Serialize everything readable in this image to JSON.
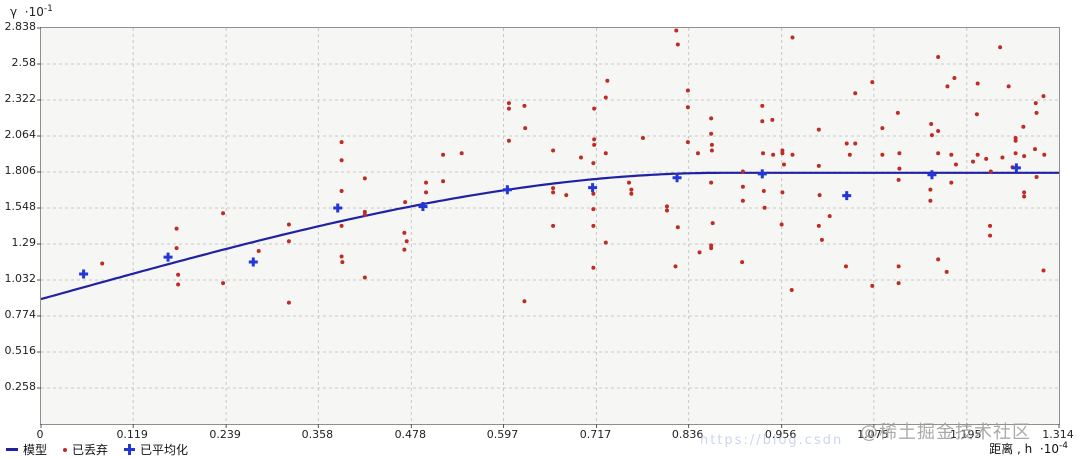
{
  "axes": {
    "y_title": {
      "symbol": "γ",
      "multiplier": "·10",
      "exponent": "-1"
    },
    "x_title": {
      "text": "距离 , h",
      "multiplier": "·10",
      "exponent": "-4"
    },
    "x_ticks": {
      "labels": [
        "0",
        "0.119",
        "0.239",
        "0.358",
        "0.478",
        "0.597",
        "0.717",
        "0.836",
        "0.956",
        "1.075",
        "1.195",
        "1.314"
      ],
      "values": [
        0,
        0.119,
        0.239,
        0.358,
        0.478,
        0.597,
        0.717,
        0.836,
        0.956,
        1.075,
        1.195,
        1.314
      ]
    },
    "y_ticks": {
      "labels": [
        "0.258",
        "0.516",
        "0.774",
        "1.032",
        "1.29",
        "1.548",
        "1.806",
        "2.064",
        "2.322",
        "2.58",
        "2.838"
      ],
      "values": [
        0.258,
        0.516,
        0.774,
        1.032,
        1.29,
        1.548,
        1.806,
        2.064,
        2.322,
        2.58,
        2.838
      ]
    }
  },
  "legend": [
    {
      "label": "模型",
      "marker": "line"
    },
    {
      "label": "已丢弃",
      "marker": "dot"
    },
    {
      "label": "已平均化",
      "marker": "plus"
    }
  ],
  "watermark": {
    "text": "@稀土掘金技术社区",
    "url_text": "https://blog.csdn"
  },
  "colors": {
    "model_line": "#2121a3",
    "averaged_plus": "#2337d4",
    "discarded_dot": "#bf2b25",
    "grid": "#c8c8c8",
    "plot_bg": "#f6f6f4",
    "plot_border": "#8f8f8f"
  },
  "chart_data": {
    "type": "scatter",
    "title": "",
    "xlabel": "距离 , h ·10^-4",
    "ylabel": "γ ·10^-1",
    "xlim": [
      0,
      1.314
    ],
    "ylim": [
      0,
      2.838
    ],
    "grid": true,
    "legend_position": "bottom-left",
    "series": [
      {
        "name": "模型",
        "type": "line",
        "model": "spherical",
        "nugget": 0.895,
        "sill": 1.8,
        "range": 0.88
      },
      {
        "name": "已平均化",
        "type": "scatter",
        "marker": "plus",
        "points": [
          [
            0.055,
            1.075
          ],
          [
            0.164,
            1.196
          ],
          [
            0.274,
            1.161
          ],
          [
            0.383,
            1.548
          ],
          [
            0.493,
            1.559
          ],
          [
            0.602,
            1.679
          ],
          [
            0.712,
            1.694
          ],
          [
            0.821,
            1.765
          ],
          [
            0.931,
            1.793
          ],
          [
            1.04,
            1.637
          ],
          [
            1.15,
            1.786
          ],
          [
            1.259,
            1.836
          ]
        ]
      },
      {
        "name": "已丢弃",
        "type": "scatter",
        "marker": "dot",
        "points": [
          [
            0.079,
            1.15
          ],
          [
            0.175,
            1.4
          ],
          [
            0.175,
            1.26
          ],
          [
            0.177,
            1.07
          ],
          [
            0.177,
            1.0
          ],
          [
            0.235,
            1.51
          ],
          [
            0.235,
            1.01
          ],
          [
            0.281,
            1.24
          ],
          [
            0.32,
            1.43
          ],
          [
            0.32,
            1.31
          ],
          [
            0.32,
            0.87
          ],
          [
            0.388,
            2.02
          ],
          [
            0.388,
            1.89
          ],
          [
            0.388,
            1.67
          ],
          [
            0.388,
            1.42
          ],
          [
            0.388,
            1.2
          ],
          [
            0.389,
            1.16
          ],
          [
            0.418,
            1.76
          ],
          [
            0.418,
            1.52
          ],
          [
            0.418,
            1.5
          ],
          [
            0.418,
            1.05
          ],
          [
            0.47,
            1.59
          ],
          [
            0.469,
            1.37
          ],
          [
            0.472,
            1.31
          ],
          [
            0.469,
            1.25
          ],
          [
            0.497,
            1.73
          ],
          [
            0.497,
            1.66
          ],
          [
            0.519,
            1.93
          ],
          [
            0.543,
            1.94
          ],
          [
            0.519,
            1.74
          ],
          [
            0.604,
            2.3
          ],
          [
            0.604,
            2.26
          ],
          [
            0.624,
            2.28
          ],
          [
            0.625,
            2.12
          ],
          [
            0.604,
            2.03
          ],
          [
            0.624,
            0.88
          ],
          [
            0.661,
            1.96
          ],
          [
            0.661,
            1.69
          ],
          [
            0.661,
            1.66
          ],
          [
            0.661,
            1.42
          ],
          [
            0.678,
            1.64
          ],
          [
            0.697,
            1.91
          ],
          [
            0.713,
            1.87
          ],
          [
            0.729,
            1.94
          ],
          [
            0.731,
            2.46
          ],
          [
            0.729,
            2.34
          ],
          [
            0.714,
            2.26
          ],
          [
            0.714,
            2.04
          ],
          [
            0.714,
            2.0
          ],
          [
            0.713,
            1.65
          ],
          [
            0.713,
            1.54
          ],
          [
            0.713,
            1.42
          ],
          [
            0.729,
            1.3
          ],
          [
            0.713,
            1.12
          ],
          [
            0.759,
            1.73
          ],
          [
            0.762,
            1.68
          ],
          [
            0.762,
            1.65
          ],
          [
            0.777,
            2.05
          ],
          [
            0.82,
            2.82
          ],
          [
            0.822,
            2.72
          ],
          [
            0.835,
            2.39
          ],
          [
            0.835,
            2.27
          ],
          [
            0.835,
            2.02
          ],
          [
            0.848,
            1.94
          ],
          [
            0.808,
            1.56
          ],
          [
            0.808,
            1.53
          ],
          [
            0.822,
            1.41
          ],
          [
            0.85,
            1.23
          ],
          [
            0.819,
            1.13
          ],
          [
            0.865,
            2.19
          ],
          [
            0.865,
            2.08
          ],
          [
            0.866,
            2.0
          ],
          [
            0.866,
            1.96
          ],
          [
            0.865,
            1.73
          ],
          [
            0.867,
            1.44
          ],
          [
            0.865,
            1.28
          ],
          [
            0.865,
            1.26
          ],
          [
            0.906,
            1.81
          ],
          [
            0.906,
            1.7
          ],
          [
            0.906,
            1.6
          ],
          [
            0.905,
            1.16
          ],
          [
            0.931,
            2.28
          ],
          [
            0.931,
            2.17
          ],
          [
            0.944,
            2.18
          ],
          [
            0.932,
            1.94
          ],
          [
            0.945,
            1.93
          ],
          [
            0.957,
            1.96
          ],
          [
            0.957,
            1.94
          ],
          [
            0.97,
            2.77
          ],
          [
            0.97,
            1.93
          ],
          [
            0.959,
            1.86
          ],
          [
            0.933,
            1.67
          ],
          [
            0.957,
            1.66
          ],
          [
            0.956,
            1.43
          ],
          [
            0.934,
            1.55
          ],
          [
            0.969,
            0.96
          ],
          [
            1.004,
            2.11
          ],
          [
            1.04,
            2.01
          ],
          [
            1.051,
            2.01
          ],
          [
            1.051,
            2.37
          ],
          [
            1.004,
            1.85
          ],
          [
            1.005,
            1.64
          ],
          [
            1.018,
            1.49
          ],
          [
            1.004,
            1.42
          ],
          [
            1.008,
            1.32
          ],
          [
            1.039,
            1.13
          ],
          [
            1.044,
            1.93
          ],
          [
            1.073,
            2.45
          ],
          [
            1.086,
            2.12
          ],
          [
            1.086,
            1.93
          ],
          [
            1.073,
            0.99
          ],
          [
            1.106,
            2.23
          ],
          [
            1.108,
            1.94
          ],
          [
            1.108,
            1.83
          ],
          [
            1.107,
            1.75
          ],
          [
            1.107,
            1.13
          ],
          [
            1.107,
            1.01
          ],
          [
            1.149,
            2.15
          ],
          [
            1.158,
            2.63
          ],
          [
            1.158,
            2.1
          ],
          [
            1.15,
            2.07
          ],
          [
            1.158,
            1.94
          ],
          [
            1.148,
            1.68
          ],
          [
            1.148,
            1.6
          ],
          [
            1.158,
            1.18
          ],
          [
            1.169,
            1.09
          ],
          [
            1.179,
            2.48
          ],
          [
            1.17,
            2.42
          ],
          [
            1.175,
            1.93
          ],
          [
            1.175,
            1.73
          ],
          [
            1.181,
            1.86
          ],
          [
            1.209,
            2.44
          ],
          [
            1.208,
            2.22
          ],
          [
            1.209,
            1.93
          ],
          [
            1.203,
            1.88
          ],
          [
            1.22,
            1.9
          ],
          [
            1.226,
            1.81
          ],
          [
            1.225,
            1.42
          ],
          [
            1.225,
            1.35
          ],
          [
            1.238,
            2.7
          ],
          [
            1.249,
            2.42
          ],
          [
            1.241,
            1.91
          ],
          [
            1.254,
            1.84
          ],
          [
            1.258,
            2.05
          ],
          [
            1.258,
            2.03
          ],
          [
            1.258,
            1.94
          ],
          [
            1.268,
            2.13
          ],
          [
            1.269,
            1.92
          ],
          [
            1.269,
            1.66
          ],
          [
            1.269,
            1.63
          ],
          [
            1.284,
            2.3
          ],
          [
            1.285,
            2.23
          ],
          [
            1.283,
            1.97
          ],
          [
            1.285,
            1.77
          ],
          [
            1.294,
            2.35
          ],
          [
            1.294,
            1.1
          ],
          [
            1.295,
            1.93
          ]
        ]
      }
    ]
  }
}
